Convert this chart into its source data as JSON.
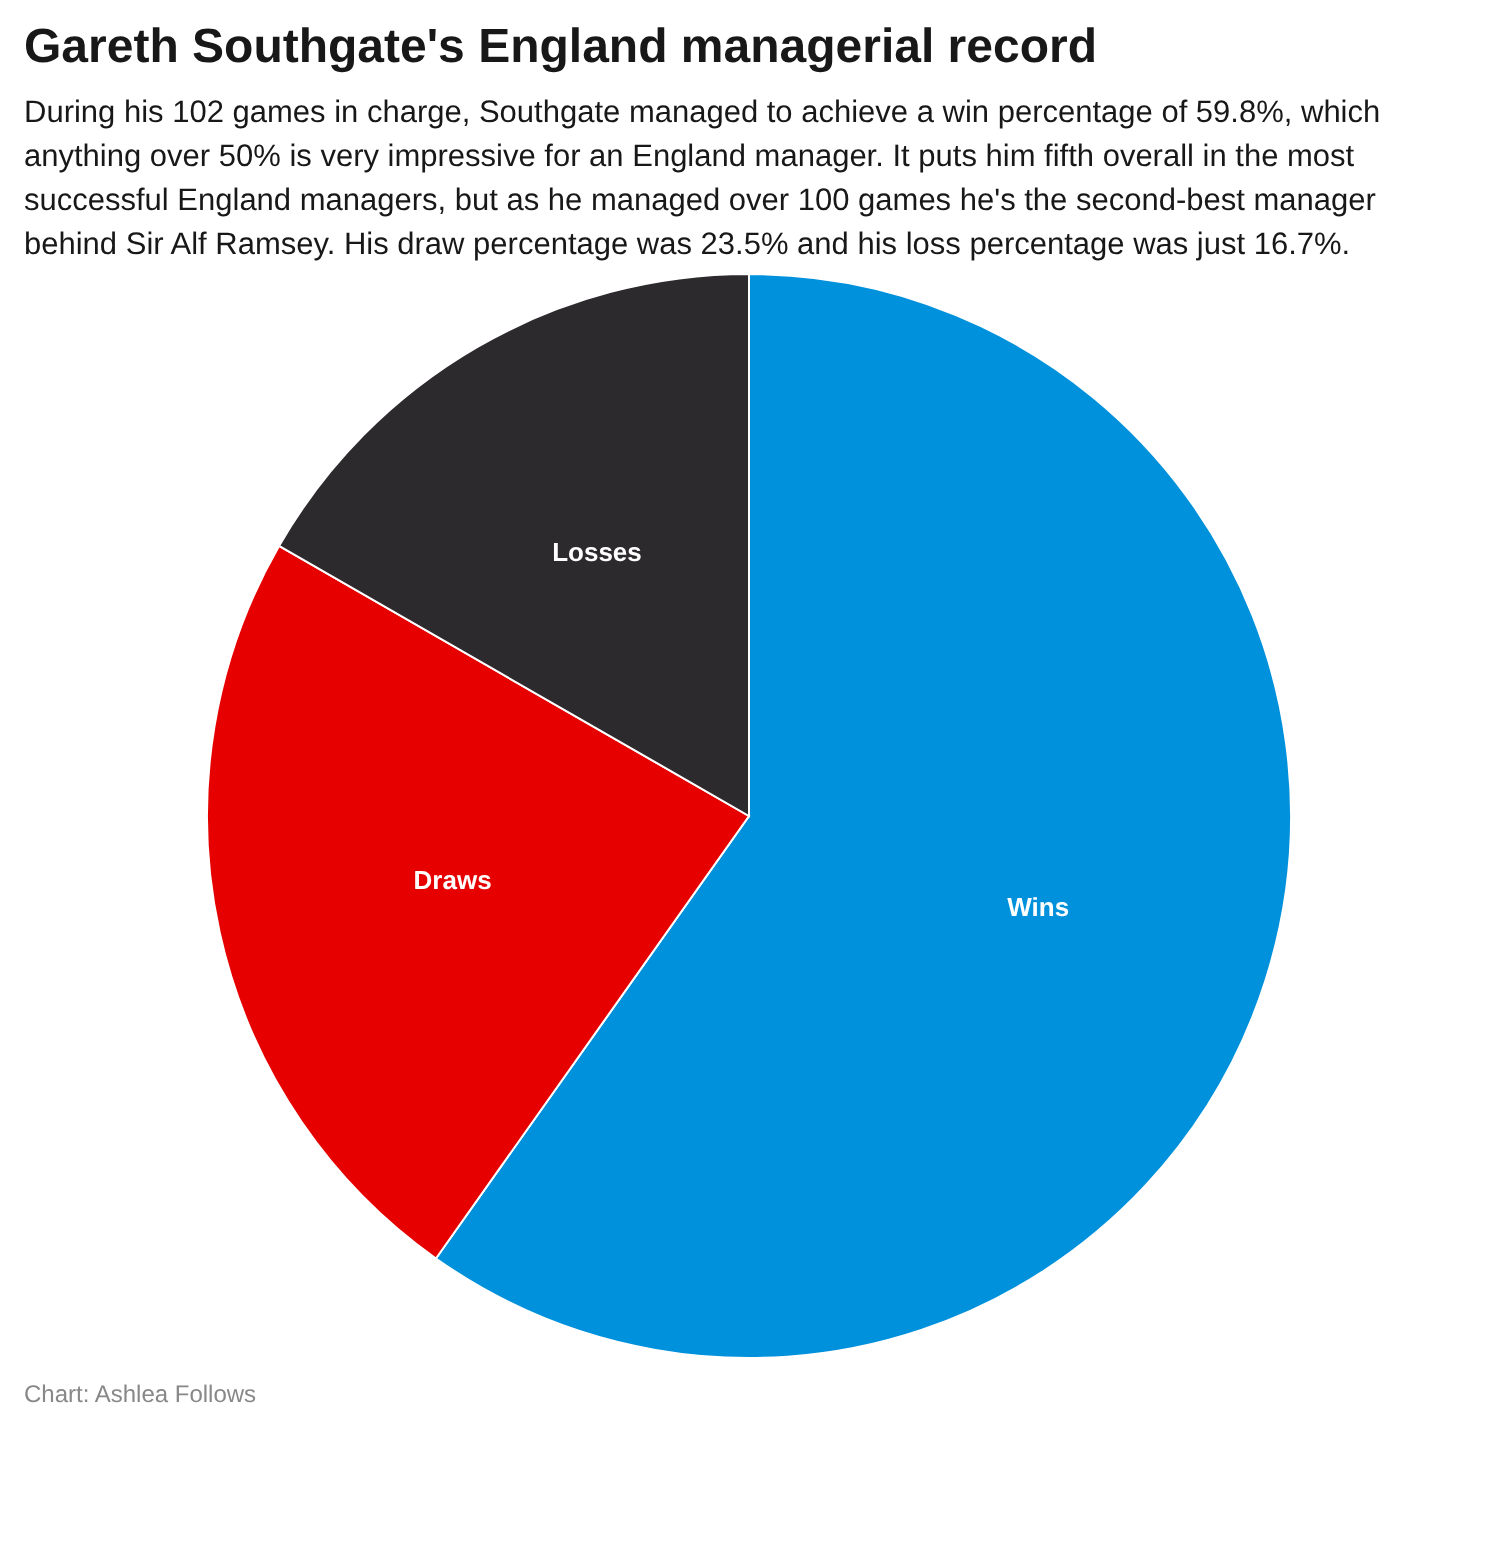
{
  "chart_data": {
    "type": "pie",
    "title": "Gareth Southgate's England managerial record",
    "subtitle": "During his 102 games in charge, Southgate managed to achieve a win percentage of 59.8%, which anything over 50% is very impressive for an England manager. It puts him fifth overall in the most successful England managers, but as he managed over 100 games he's the second-best manager behind Sir Alf Ramsey. His draw percentage was 23.5% and his loss percentage was just 16.7%.",
    "categories": [
      "Wins",
      "Draws",
      "Losses"
    ],
    "values": [
      59.8,
      23.5,
      16.7
    ],
    "colors": [
      "#0091dc",
      "#e60000",
      "#2d2a2e"
    ],
    "annotations": [
      "Chart: Ashlea Follows"
    ]
  }
}
